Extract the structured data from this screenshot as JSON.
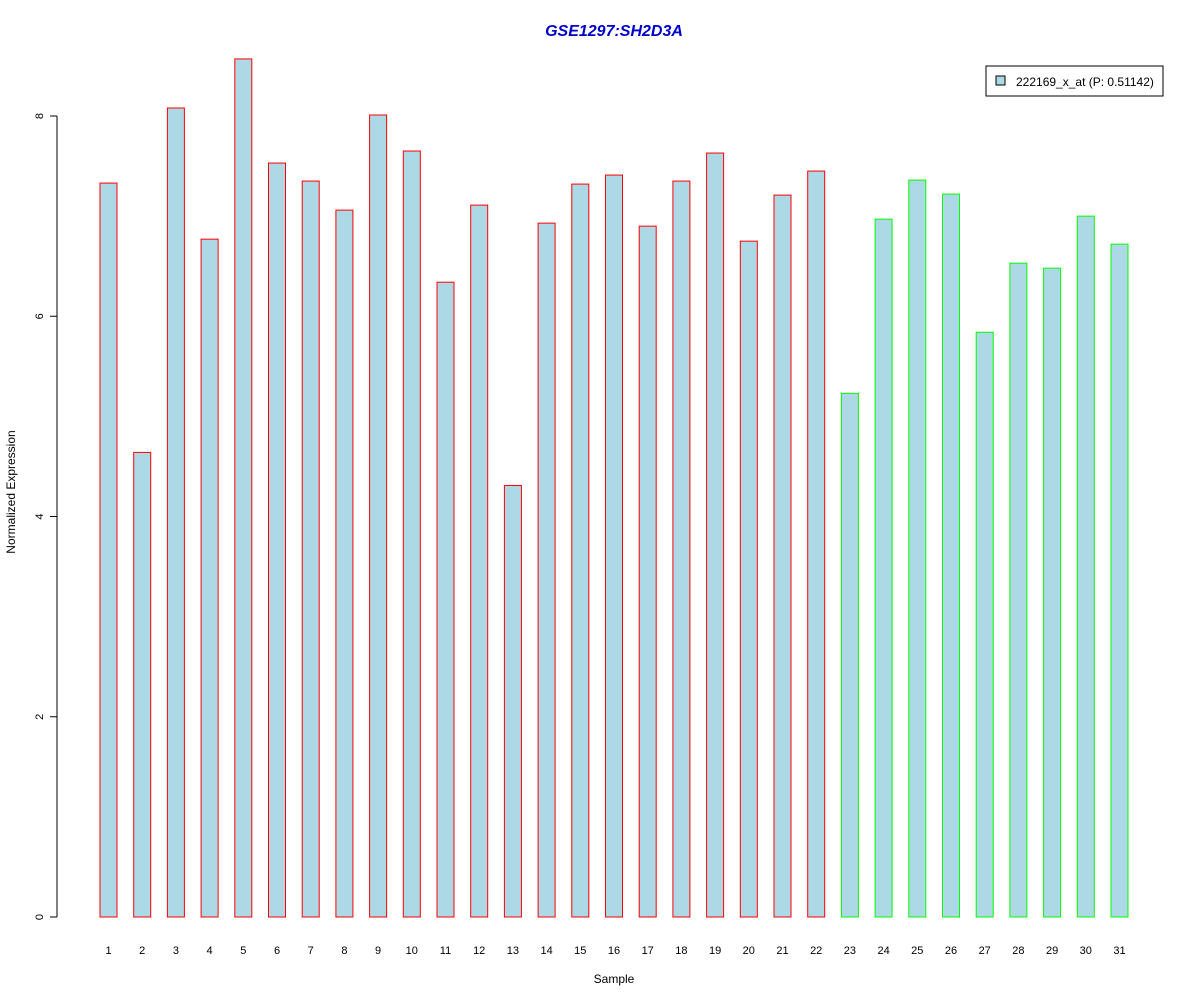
{
  "chart_data": {
    "type": "bar",
    "title": "GSE1297:SH2D3A",
    "xlabel": "Sample",
    "ylabel": "Normalized Expression",
    "ylim": [
      0,
      8
    ],
    "yticks": [
      0,
      2,
      4,
      6,
      8
    ],
    "grid": false,
    "legend_position": "top-right",
    "colors": {
      "title": "#0000CC",
      "bar_fill": "#ADD8E6",
      "group_1_border": "#FF0000",
      "group_2_border": "#00FF00",
      "axis": "#000000"
    },
    "categories": [
      "1",
      "2",
      "3",
      "4",
      "5",
      "6",
      "7",
      "8",
      "9",
      "10",
      "11",
      "12",
      "13",
      "14",
      "15",
      "16",
      "17",
      "18",
      "19",
      "20",
      "21",
      "22",
      "23",
      "24",
      "25",
      "26",
      "27",
      "28",
      "29",
      "30",
      "31"
    ],
    "series": [
      {
        "name": "222169_x_at (P: 0.51142)",
        "values": [
          7.33,
          4.64,
          8.08,
          6.77,
          8.57,
          7.53,
          7.35,
          7.06,
          8.01,
          7.65,
          6.34,
          7.11,
          4.31,
          6.93,
          7.32,
          7.41,
          6.9,
          7.35,
          7.63,
          6.75,
          7.21,
          7.45,
          5.23,
          6.97,
          7.36,
          7.22,
          5.84,
          6.53,
          6.48,
          7.0,
          6.72
        ]
      }
    ],
    "border_groups": [
      "group_1_border",
      "group_1_border",
      "group_1_border",
      "group_1_border",
      "group_1_border",
      "group_1_border",
      "group_1_border",
      "group_1_border",
      "group_1_border",
      "group_1_border",
      "group_1_border",
      "group_1_border",
      "group_1_border",
      "group_1_border",
      "group_1_border",
      "group_1_border",
      "group_1_border",
      "group_1_border",
      "group_1_border",
      "group_1_border",
      "group_1_border",
      "group_1_border",
      "group_2_border",
      "group_2_border",
      "group_2_border",
      "group_2_border",
      "group_2_border",
      "group_2_border",
      "group_2_border",
      "group_2_border",
      "group_2_border"
    ],
    "legend": {
      "entries": [
        "222169_x_at (P: 0.51142)"
      ]
    }
  }
}
